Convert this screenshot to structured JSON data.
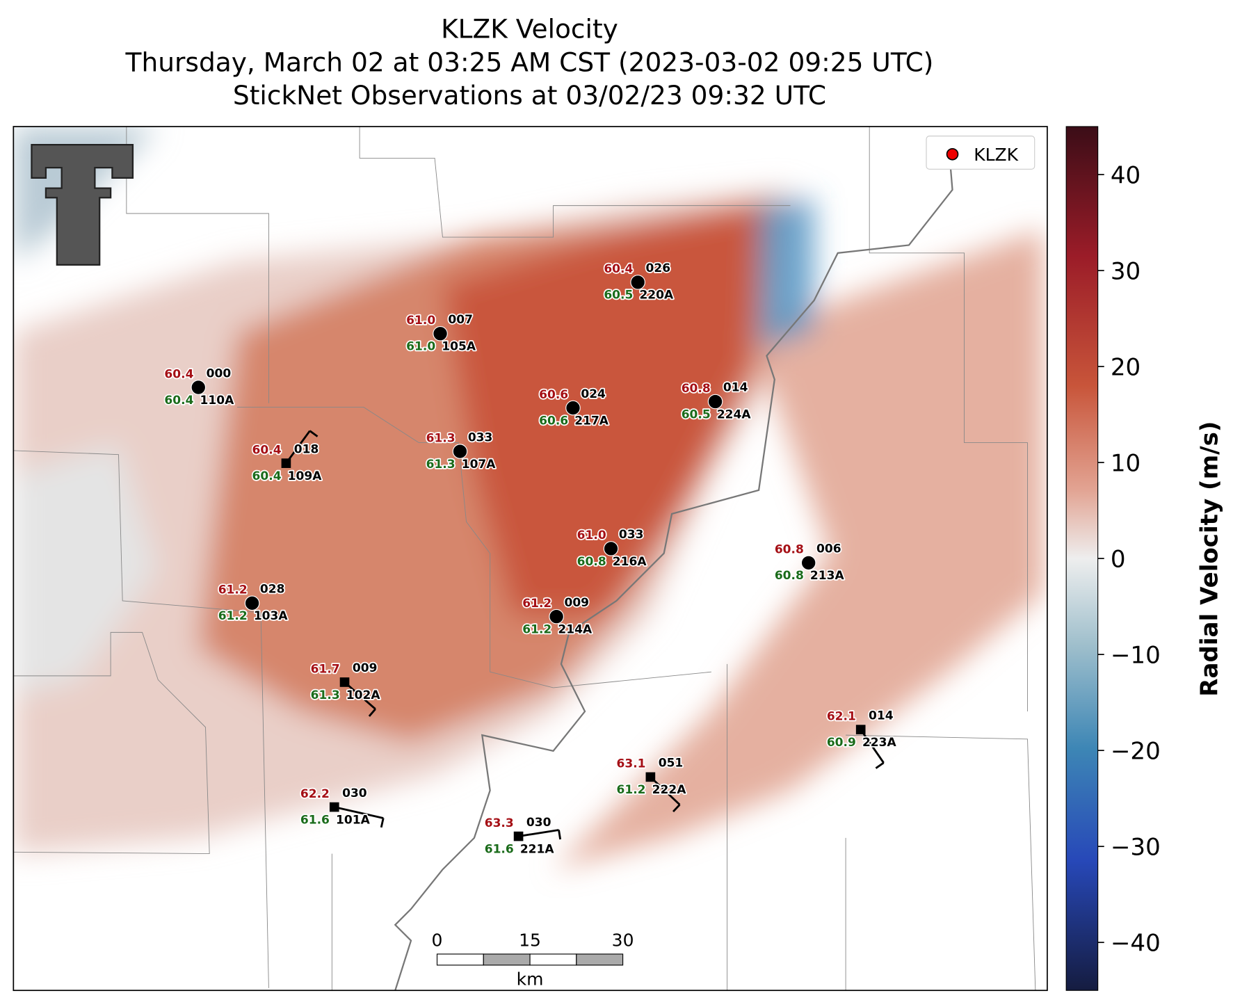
{
  "header": {
    "title_lines": [
      "KLZK Velocity",
      "Thursday, March 02 at 03:25 AM CST (2023-03-02 09:25 UTC)",
      "StickNet Observations at 03/02/23 09:32 UTC"
    ]
  },
  "legend": {
    "label": "KLZK"
  },
  "colorbar": {
    "label": "Radial Velocity (m/s)",
    "limits": [
      -45,
      45
    ],
    "ticks": [
      40,
      30,
      20,
      10,
      0,
      {
        "value": -10,
        "label": "−10"
      },
      {
        "value": -20,
        "label": "−20"
      },
      {
        "value": -30,
        "label": "−30"
      },
      {
        "value": -40,
        "label": "−40"
      }
    ]
  },
  "stations": [
    {
      "id": "220A",
      "temperature": "60.4",
      "dewpoint": "60.5",
      "wind": "026",
      "marker": "circle"
    },
    {
      "id": "105A",
      "temperature": "61.0",
      "dewpoint": "61.0",
      "wind": "007",
      "marker": "circle"
    },
    {
      "id": "110A",
      "temperature": "60.4",
      "dewpoint": "60.4",
      "wind": "000",
      "marker": "circle"
    },
    {
      "id": "217A",
      "temperature": "60.6",
      "dewpoint": "60.6",
      "wind": "024",
      "marker": "circle"
    },
    {
      "id": "224A",
      "temperature": "60.8",
      "dewpoint": "60.5",
      "wind": "014",
      "marker": "circle"
    },
    {
      "id": "109A",
      "temperature": "60.4",
      "dewpoint": "60.4",
      "wind": "018",
      "marker": "square"
    },
    {
      "id": "107A",
      "temperature": "61.3",
      "dewpoint": "61.3",
      "wind": "033",
      "marker": "circle"
    },
    {
      "id": "216A",
      "temperature": "61.0",
      "dewpoint": "60.8",
      "wind": "033",
      "marker": "circle"
    },
    {
      "id": "213A",
      "temperature": "60.8",
      "dewpoint": "60.8",
      "wind": "006",
      "marker": "circle"
    },
    {
      "id": "103A",
      "temperature": "61.2",
      "dewpoint": "61.2",
      "wind": "028",
      "marker": "circle"
    },
    {
      "id": "214A",
      "temperature": "61.2",
      "dewpoint": "61.2",
      "wind": "009",
      "marker": "circle"
    },
    {
      "id": "102A",
      "temperature": "61.7",
      "dewpoint": "61.3",
      "wind": "009",
      "marker": "square"
    },
    {
      "id": "223A",
      "temperature": "62.1",
      "dewpoint": "60.9",
      "wind": "014",
      "marker": "square"
    },
    {
      "id": "222A",
      "temperature": "63.1",
      "dewpoint": "61.2",
      "wind": "051",
      "marker": "square"
    },
    {
      "id": "101A",
      "temperature": "62.2",
      "dewpoint": "61.6",
      "wind": "030",
      "marker": "square"
    },
    {
      "id": "221A",
      "temperature": "63.3",
      "dewpoint": "61.6",
      "wind": "030",
      "marker": "square"
    }
  ],
  "scale_bar": {
    "ticks": [
      0,
      15,
      30
    ],
    "unit": "km"
  }
}
